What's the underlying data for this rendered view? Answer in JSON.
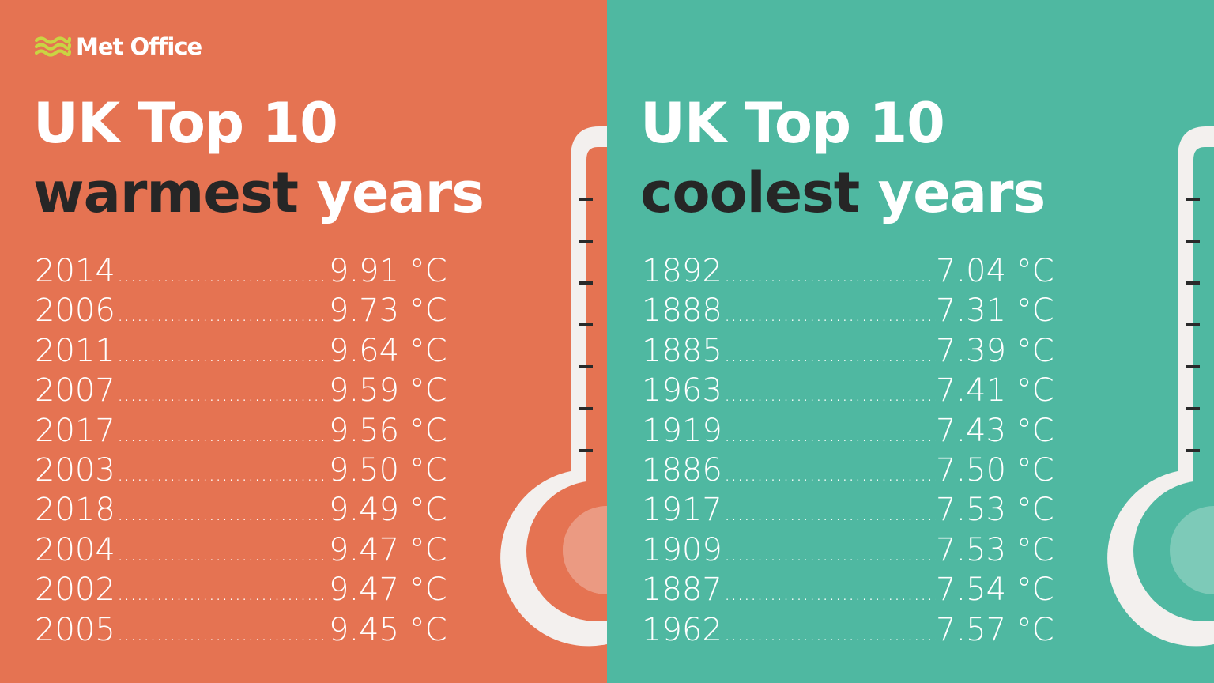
{
  "brand": {
    "name": "Met Office",
    "logo_color": "#c9d443"
  },
  "colors": {
    "warm_background": "#e57352",
    "cool_background": "#4fb8a1",
    "dark_text": "#262626",
    "light_text": "#ffffff"
  },
  "warmest": {
    "title_line1": "UK Top 10",
    "title_word_dark": "warmest",
    "title_word_light": "years",
    "rows": [
      {
        "year": "2014",
        "temp": "9.91 °C"
      },
      {
        "year": "2006",
        "temp": "9.73 °C"
      },
      {
        "year": "2011",
        "temp": "9.64 °C"
      },
      {
        "year": "2007",
        "temp": "9.59 °C"
      },
      {
        "year": "2017",
        "temp": "9.56 °C"
      },
      {
        "year": "2003",
        "temp": "9.50 °C"
      },
      {
        "year": "2018",
        "temp": "9.49 °C"
      },
      {
        "year": "2004",
        "temp": "9.47 °C"
      },
      {
        "year": "2002",
        "temp": "9.47 °C"
      },
      {
        "year": "2005",
        "temp": "9.45 °C"
      }
    ]
  },
  "coolest": {
    "title_line1": "UK Top 10",
    "title_word_dark": "coolest",
    "title_word_light": "years",
    "rows": [
      {
        "year": "1892",
        "temp": "7.04 °C"
      },
      {
        "year": "1888",
        "temp": "7.31 °C"
      },
      {
        "year": "1885",
        "temp": "7.39 °C"
      },
      {
        "year": "1963",
        "temp": "7.41 °C"
      },
      {
        "year": "1919",
        "temp": "7.43 °C"
      },
      {
        "year": "1886",
        "temp": "7.50 °C"
      },
      {
        "year": "1917",
        "temp": "7.53 °C"
      },
      {
        "year": "1909",
        "temp": "7.53 °C"
      },
      {
        "year": "1887",
        "temp": "7.54 °C"
      },
      {
        "year": "1962",
        "temp": "7.57 °C"
      }
    ]
  },
  "icons": [
    "met-office-logo-icon",
    "thermometer-icon"
  ]
}
